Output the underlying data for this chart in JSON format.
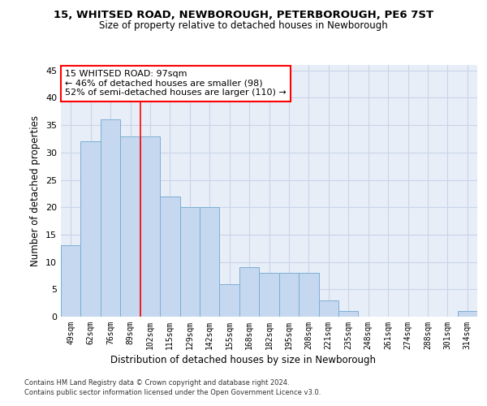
{
  "title1": "15, WHITSED ROAD, NEWBOROUGH, PETERBOROUGH, PE6 7ST",
  "title2": "Size of property relative to detached houses in Newborough",
  "xlabel": "Distribution of detached houses by size in Newborough",
  "ylabel": "Number of detached properties",
  "categories": [
    "49sqm",
    "62sqm",
    "76sqm",
    "89sqm",
    "102sqm",
    "115sqm",
    "129sqm",
    "142sqm",
    "155sqm",
    "168sqm",
    "182sqm",
    "195sqm",
    "208sqm",
    "221sqm",
    "235sqm",
    "248sqm",
    "261sqm",
    "274sqm",
    "288sqm",
    "301sqm",
    "314sqm"
  ],
  "values": [
    13,
    32,
    36,
    33,
    33,
    22,
    20,
    20,
    6,
    9,
    8,
    8,
    8,
    3,
    1,
    0,
    0,
    0,
    0,
    0,
    1
  ],
  "bar_color": "#c5d8ef",
  "bar_edge_color": "#7bafd4",
  "grid_color": "#c8d4e8",
  "background_color": "#e8eef8",
  "red_line_index": 4,
  "annotation_text": "15 WHITSED ROAD: 97sqm\n← 46% of detached houses are smaller (98)\n52% of semi-detached houses are larger (110) →",
  "annotation_box_color": "white",
  "annotation_box_edge": "red",
  "ylim": [
    0,
    46
  ],
  "yticks": [
    0,
    5,
    10,
    15,
    20,
    25,
    30,
    35,
    40,
    45
  ],
  "footer1": "Contains HM Land Registry data © Crown copyright and database right 2024.",
  "footer2": "Contains public sector information licensed under the Open Government Licence v3.0."
}
